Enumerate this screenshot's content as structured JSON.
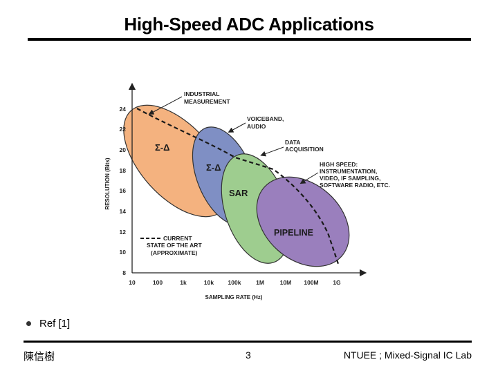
{
  "slide": {
    "title": "High-Speed ADC Applications",
    "bullet": "Ref [1]",
    "footer_left": "陳信樹",
    "footer_center": "3",
    "footer_right": "NTUEE ; Mixed-Signal IC Lab"
  },
  "diagram": {
    "x_axis_label": "SAMPLING RATE (Hz)",
    "y_axis_label": "RESOLUTION (Bits)",
    "x_ticks": [
      "10",
      "100",
      "1k",
      "10k",
      "100k",
      "1M",
      "10M",
      "100M",
      "1G"
    ],
    "y_ticks": [
      "8",
      "10",
      "12",
      "14",
      "16",
      "18",
      "20",
      "22",
      "24"
    ],
    "regions": [
      {
        "label": "Σ-Δ",
        "color": "#f4b27f"
      },
      {
        "label": "Σ-Δ",
        "color": "#7f8fc4"
      },
      {
        "label": "SAR",
        "color": "#9ecd8f"
      },
      {
        "label": "PIPELINE",
        "color": "#9a7fbd"
      }
    ],
    "annotations": {
      "industrial_1": "INDUSTRIAL",
      "industrial_2": "MEASUREMENT",
      "voiceband_1": "VOICEBAND,",
      "voiceband_2": "AUDIO",
      "data_1": "DATA",
      "data_2": "ACQUISITION",
      "high_1": "HIGH SPEED:",
      "high_2": "INSTRUMENTATION,",
      "high_3": "VIDEO, IF SAMPLING,",
      "high_4": "SOFTWARE RADIO, ETC.",
      "legend_1": "CURRENT",
      "legend_2": "STATE OF THE ART",
      "legend_3": "(APPROXIMATE)"
    }
  }
}
